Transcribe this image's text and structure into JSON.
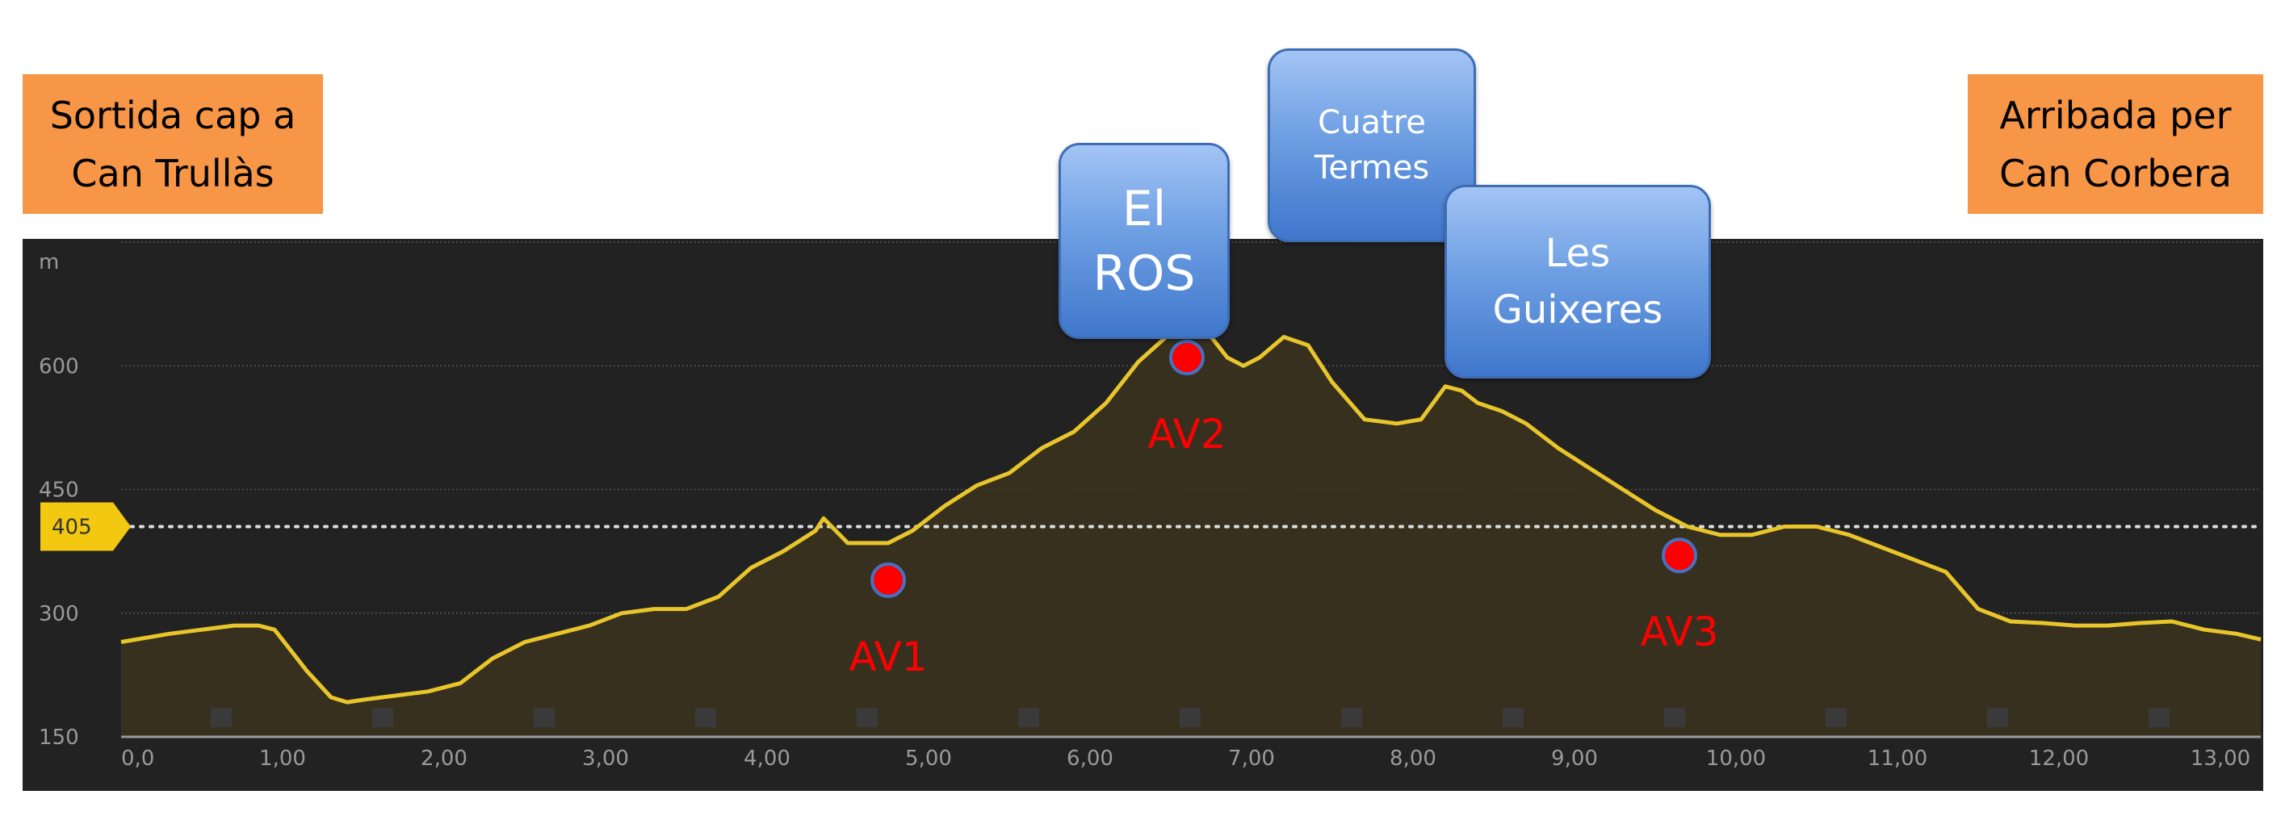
{
  "labels": {
    "start": [
      "Sortida cap a",
      "Can Trullàs"
    ],
    "end": [
      "Arribada per",
      "Can Corbera"
    ],
    "peak_ros": [
      "El",
      "ROS"
    ],
    "peak_cuatre": [
      "Cuatre",
      "Termes"
    ],
    "peak_guix": [
      "Les",
      "Guixeres"
    ]
  },
  "colors": {
    "chart_bg": "#222222",
    "profile_line": "#E8C52B",
    "profile_fill": "#3A3220",
    "marker": "#FF0000",
    "marker_border": "#4472C4",
    "label_box": "#F79646",
    "ref_badge": "#F2C811"
  },
  "chart_data": {
    "type": "area",
    "title": "",
    "xlabel": "",
    "ylabel": "m",
    "x_ticks": [
      "0,0",
      "1,00",
      "2,00",
      "3,00",
      "4,00",
      "5,00",
      "6,00",
      "7,00",
      "8,00",
      "9,00",
      "10,00",
      "11,00",
      "12,00",
      "13,00"
    ],
    "y_ticks": [
      150,
      300,
      450,
      600
    ],
    "xlim": [
      0,
      13.25
    ],
    "ylim": [
      150,
      750
    ],
    "grid": true,
    "reference_line": {
      "value": 405,
      "label": "405"
    },
    "series": [
      {
        "x": [
          0,
          0.3,
          0.5,
          0.7,
          0.85,
          0.95,
          1.05,
          1.15,
          1.3,
          1.4,
          1.5,
          1.7,
          1.9,
          2.1,
          2.3,
          2.5,
          2.7,
          2.9,
          3.1,
          3.3,
          3.5,
          3.7,
          3.9,
          4.1,
          4.3,
          4.35,
          4.5,
          4.65,
          4.75,
          4.9,
          5.1,
          5.3,
          5.5,
          5.7,
          5.9,
          6.1,
          6.3,
          6.5,
          6.65,
          6.75,
          6.85,
          6.95,
          7.05,
          7.2,
          7.35,
          7.5,
          7.7,
          7.9,
          8.05,
          8.2,
          8.3,
          8.4,
          8.55,
          8.7,
          8.9,
          9.1,
          9.3,
          9.5,
          9.7,
          9.9,
          10.1,
          10.3,
          10.5,
          10.7,
          10.9,
          11.1,
          11.3,
          11.5,
          11.7,
          11.9,
          12.1,
          12.3,
          12.5,
          12.7,
          12.9,
          13.1,
          13.25
        ],
        "y": [
          265,
          275,
          280,
          285,
          285,
          280,
          255,
          230,
          198,
          192,
          195,
          200,
          205,
          215,
          245,
          265,
          275,
          285,
          300,
          305,
          305,
          320,
          355,
          375,
          400,
          415,
          385,
          385,
          385,
          400,
          430,
          455,
          470,
          500,
          520,
          555,
          605,
          640,
          650,
          635,
          610,
          600,
          610,
          635,
          625,
          580,
          535,
          530,
          535,
          575,
          570,
          555,
          545,
          530,
          500,
          475,
          450,
          425,
          405,
          395,
          395,
          405,
          405,
          395,
          380,
          365,
          350,
          305,
          290,
          288,
          285,
          285,
          288,
          290,
          280,
          275,
          268
        ]
      }
    ],
    "markers": [
      {
        "label": "AV1",
        "x": 4.75,
        "y": 340
      },
      {
        "label": "AV2",
        "x": 6.6,
        "y": 610
      },
      {
        "label": "AV3",
        "x": 9.65,
        "y": 370
      }
    ]
  }
}
